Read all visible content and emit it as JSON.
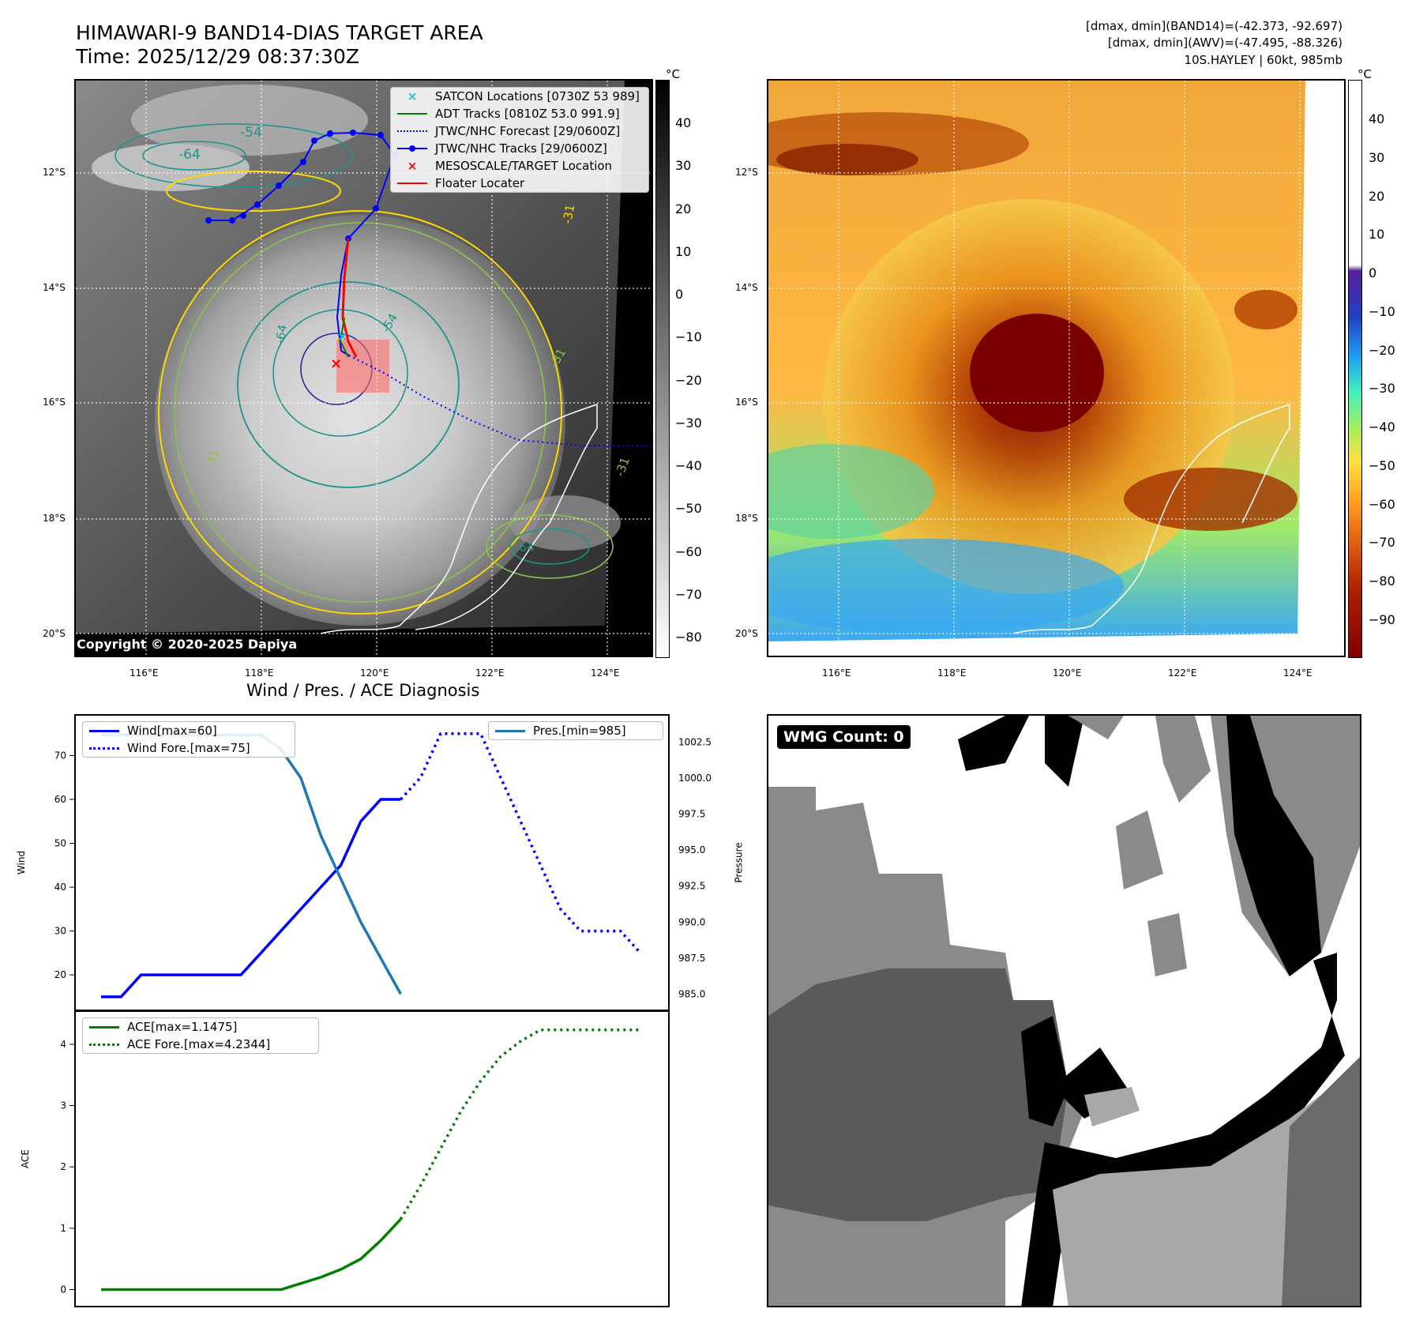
{
  "header": {
    "title_line1": "HIMAWARI-9 BAND14-DIAS TARGET AREA",
    "title_line2": "Time: 2025/12/29 08:37:30Z",
    "right_line1": "[dmax, dmin](BAND14)=(-42.373, -92.697)",
    "right_line2": "[dmax, dmin](AWV)=(-47.495, -88.326)",
    "right_line3": "10S.HAYLEY | 60kt, 985mb"
  },
  "map": {
    "lat_labels": [
      "12°S",
      "14°S",
      "16°S",
      "18°S",
      "20°S"
    ],
    "lon_labels": [
      "116°E",
      "118°E",
      "120°E",
      "122°E",
      "124°E"
    ],
    "copyright": "Copyright © 2020-2025 Dapiya",
    "colorbar_unit": "°C",
    "ir_colorbar_ticks": [
      "40",
      "30",
      "20",
      "10",
      "0",
      "−10",
      "−20",
      "−30",
      "−40",
      "−50",
      "−60",
      "−70",
      "−80"
    ],
    "wv_colorbar_ticks": [
      "40",
      "30",
      "20",
      "10",
      "0",
      "−10",
      "−20",
      "−30",
      "−40",
      "−50",
      "−60",
      "−70",
      "−80",
      "−90"
    ],
    "contour_labels": [
      "-54",
      "-64",
      "-31",
      "-54",
      "-64",
      "-31",
      "-31",
      "-64",
      "-31"
    ],
    "legend": [
      {
        "label": "SATCON Locations [0730Z 53 989]",
        "color": "#17becf",
        "style": "x"
      },
      {
        "label": "ADT Tracks [0810Z 53.0 991.9]",
        "color": "#008000",
        "style": "solid"
      },
      {
        "label": "JTWC/NHC Forecast [29/0600Z]",
        "color": "#0000ff",
        "style": "dotted"
      },
      {
        "label": "JTWC/NHC Tracks [29/0600Z]",
        "color": "#0000ff",
        "style": "dot-line"
      },
      {
        "label": "MESOSCALE/TARGET Location",
        "color": "#ff0000",
        "style": "x"
      },
      {
        "label": "Floater Locater",
        "color": "#ff0000",
        "style": "solid"
      }
    ]
  },
  "wmg": {
    "label": "WMG Count: 0"
  },
  "chart_data": [
    {
      "type": "line",
      "title": "Wind / Pres. / ACE Diagnosis",
      "ylabel": "Wind",
      "ylabel_right": "Pressure",
      "x": [
        0,
        1,
        2,
        3,
        4,
        5,
        6,
        7,
        8,
        9,
        10,
        11,
        12,
        13,
        14,
        15,
        16,
        17,
        18,
        19,
        20,
        21,
        22,
        23,
        24,
        25,
        26,
        27
      ],
      "yticks": [
        "70",
        "60",
        "50",
        "40",
        "30",
        "20"
      ],
      "yticks_right": [
        "1002.5",
        "1000.0",
        "997.5",
        "995.0",
        "992.5",
        "990.0",
        "987.5",
        "985.0"
      ],
      "ylim": [
        13,
        78
      ],
      "ylim_right": [
        984.2,
        1004.0
      ],
      "series": [
        {
          "name": "Wind[max=60]",
          "axis": "left",
          "color": "#0000ff",
          "style": "solid",
          "x": [
            0,
            1,
            2,
            3,
            4,
            5,
            6,
            7,
            8,
            9,
            10,
            11,
            12,
            13,
            14,
            15
          ],
          "values": [
            15,
            15,
            20,
            20,
            20,
            20,
            20,
            20,
            25,
            30,
            35,
            40,
            45,
            55,
            60,
            60
          ]
        },
        {
          "name": "Wind Fore.[max=75]",
          "axis": "left",
          "color": "#0000ff",
          "style": "dotted",
          "x": [
            15,
            16,
            17,
            18,
            19,
            20,
            21,
            22,
            23,
            24,
            25,
            26,
            27
          ],
          "values": [
            60,
            65,
            75,
            75,
            75,
            65,
            55,
            45,
            35,
            30,
            30,
            30,
            25
          ]
        },
        {
          "name": "Pres.[min=985]",
          "axis": "right",
          "color": "#1f77b4",
          "style": "solid",
          "x": [
            0,
            1,
            2,
            3,
            4,
            5,
            6,
            7,
            8,
            9,
            10,
            11,
            12,
            13,
            14,
            15
          ],
          "values": [
            1003,
            1003,
            1003,
            1003,
            1003,
            1003,
            1003,
            1003,
            1003,
            1002,
            1000,
            996,
            993,
            990,
            987.5,
            985
          ]
        }
      ]
    },
    {
      "type": "line",
      "ylabel": "ACE",
      "x": [
        0,
        1,
        2,
        3,
        4,
        5,
        6,
        7,
        8,
        9,
        10,
        11,
        12,
        13,
        14,
        15,
        16,
        17,
        18,
        19,
        20,
        21,
        22,
        23,
        24,
        25,
        26,
        27
      ],
      "yticks": [
        "4",
        "3",
        "2",
        "1",
        "0"
      ],
      "ylim": [
        -0.2,
        4.45
      ],
      "series": [
        {
          "name": "ACE[max=1.1475]",
          "color": "#008000",
          "style": "solid",
          "x": [
            0,
            1,
            2,
            3,
            4,
            5,
            6,
            7,
            8,
            9,
            10,
            11,
            12,
            13,
            14,
            15
          ],
          "values": [
            0,
            0,
            0,
            0,
            0,
            0,
            0,
            0,
            0,
            0,
            0.1,
            0.2,
            0.33,
            0.5,
            0.8,
            1.1475
          ]
        },
        {
          "name": "ACE Fore.[max=4.2344]",
          "color": "#008000",
          "style": "dotted",
          "x": [
            15,
            16,
            17,
            18,
            19,
            20,
            21,
            22,
            23,
            24,
            25,
            26,
            27
          ],
          "values": [
            1.1475,
            1.7,
            2.3,
            2.9,
            3.4,
            3.8,
            4.05,
            4.2344,
            4.2344,
            4.2344,
            4.2344,
            4.2344,
            4.2344
          ]
        }
      ]
    }
  ]
}
